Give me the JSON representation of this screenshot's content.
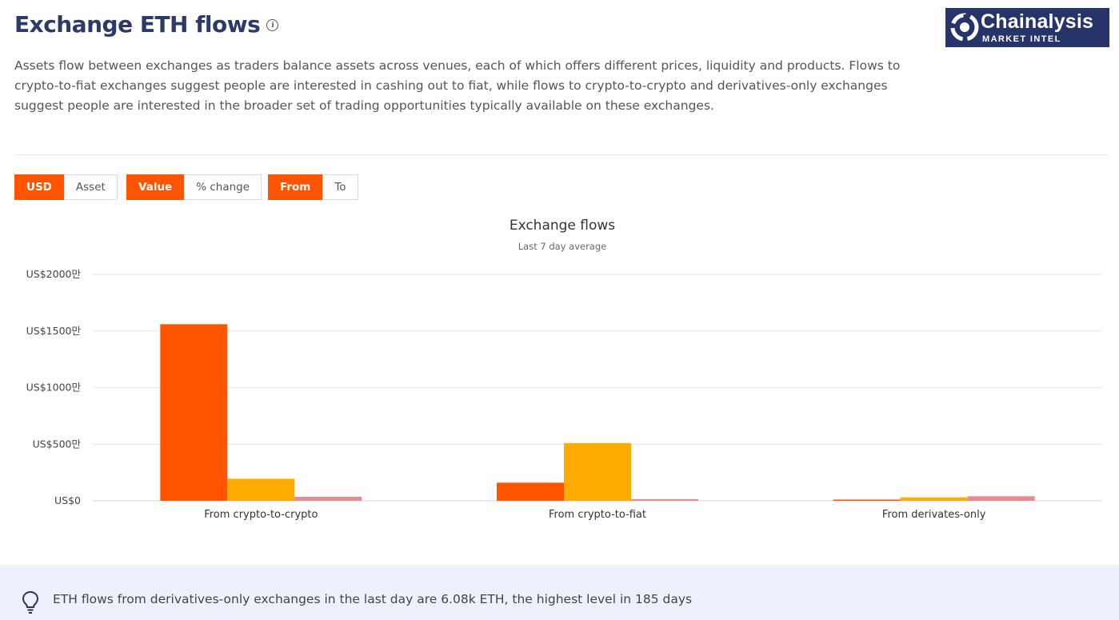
{
  "header": {
    "title": "Exchange ETH flows",
    "info_icon": "info-circle-icon",
    "description": "Assets flow between exchanges as traders balance assets across venues, each of which offers different prices, liquidity and products. Flows to crypto-to-fiat exchanges suggest people are interested in cashing out to fiat, while flows to crypto-to-crypto and derivatives-only exchanges suggest people are interested in the broader set of trading opportunities typically available on these exchanges."
  },
  "logo": {
    "name": "Chainalysis",
    "sub": "MARKET INTEL",
    "color": "#27346a"
  },
  "toggles": {
    "unit": {
      "options": [
        "USD",
        "Asset"
      ],
      "selected": "USD"
    },
    "measure": {
      "options": [
        "Value",
        "% change"
      ],
      "selected": "Value"
    },
    "direction": {
      "options": [
        "From",
        "To"
      ],
      "selected": "From"
    }
  },
  "colors": {
    "accent": "#ff5400",
    "series": [
      "#ff5400",
      "#ffab00",
      "#e58a92"
    ]
  },
  "chart_data": {
    "type": "bar",
    "title": "Exchange flows",
    "subtitle": "Last 7 day average",
    "categories": [
      "From crypto-to-crypto",
      "From crypto-to-fiat",
      "From derivates-only"
    ],
    "series": [
      {
        "values": [
          15600000,
          1600000,
          100000
        ]
      },
      {
        "values": [
          1950000,
          5100000,
          300000
        ]
      },
      {
        "values": [
          350000,
          150000,
          400000
        ]
      }
    ],
    "ylim": [
      0,
      20000000
    ],
    "yticks": [
      {
        "value": 0,
        "label": "US$0"
      },
      {
        "value": 5000000,
        "label": "US$500만"
      },
      {
        "value": 10000000,
        "label": "US$1000만"
      },
      {
        "value": 15000000,
        "label": "US$1500만"
      },
      {
        "value": 20000000,
        "label": "US$2000만"
      }
    ],
    "grid": true,
    "legend": "none"
  },
  "insight": {
    "icon": "lightbulb-icon",
    "text": "ETH flows from derivatives-only exchanges in the last day are 6.08k ETH, the highest level in 185 days"
  }
}
